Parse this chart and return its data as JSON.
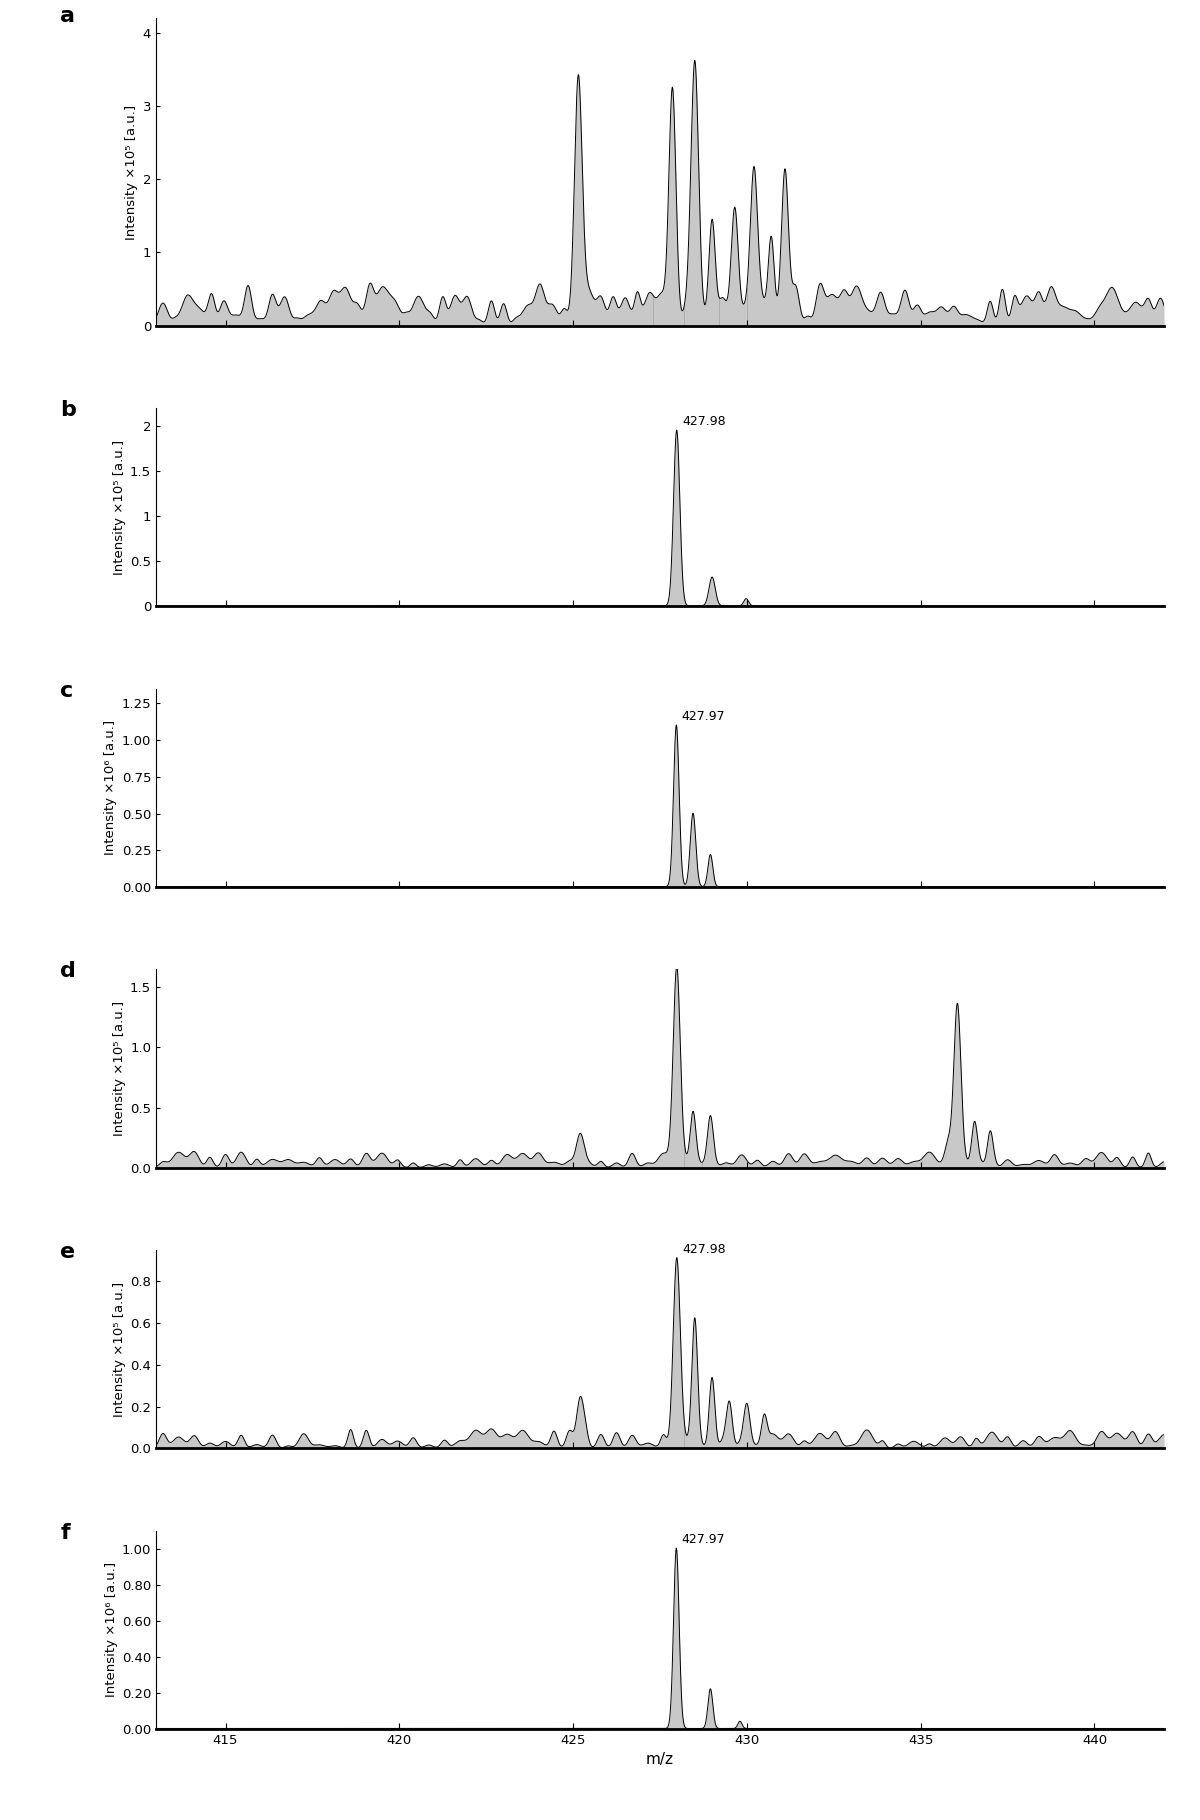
{
  "xlim": [
    413.0,
    442.0
  ],
  "x_ticks": [
    415,
    420,
    425,
    430,
    435,
    440
  ],
  "x_label": "m/z",
  "panels": [
    {
      "label": "a",
      "ylabel": "Intensity ×10⁵ [a.u.]",
      "ylim": [
        0,
        4.2
      ],
      "yticks": [
        0,
        1,
        2,
        3,
        4
      ],
      "annotation": null,
      "type": "a"
    },
    {
      "label": "b",
      "ylabel": "Intensity ×10⁵ [a.u.]",
      "ylim": [
        0,
        2.2
      ],
      "yticks": [
        0.0,
        0.5,
        1.0,
        1.5,
        2.0
      ],
      "annotation": "427.98",
      "type": "b"
    },
    {
      "label": "c",
      "ylabel": "Intensity ×10⁶ [a.u.]",
      "ylim": [
        0,
        1.35
      ],
      "yticks": [
        0.0,
        0.25,
        0.5,
        0.75,
        1.0,
        1.25
      ],
      "annotation": "427.97",
      "type": "c"
    },
    {
      "label": "d",
      "ylabel": "Intensity ×10⁵ [a.u.]",
      "ylim": [
        0,
        1.65
      ],
      "yticks": [
        0.0,
        0.5,
        1.0,
        1.5
      ],
      "annotation": null,
      "type": "d"
    },
    {
      "label": "e",
      "ylabel": "Intensity ×10⁵ [a.u.]",
      "ylim": [
        0,
        0.95
      ],
      "yticks": [
        0.0,
        0.2,
        0.4,
        0.6,
        0.8
      ],
      "annotation": "427.98",
      "type": "e"
    },
    {
      "label": "f",
      "ylabel": "Intensity ×10⁶ [a.u.]",
      "ylim": [
        0,
        1.1
      ],
      "yticks": [
        0.0,
        0.2,
        0.4,
        0.6,
        0.8,
        1.0
      ],
      "annotation": "427.97",
      "type": "f"
    }
  ],
  "fill_color": "#c8c8c8",
  "line_color": "#000000",
  "background_color": "#ffffff"
}
